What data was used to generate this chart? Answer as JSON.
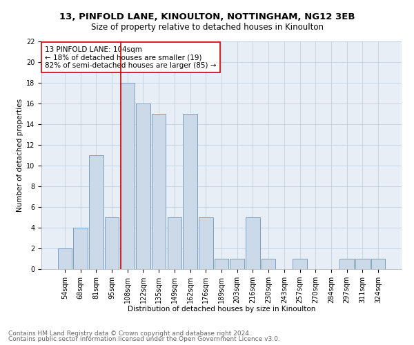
{
  "title": "13, PINFOLD LANE, KINOULTON, NOTTINGHAM, NG12 3EB",
  "subtitle": "Size of property relative to detached houses in Kinoulton",
  "xlabel": "Distribution of detached houses by size in Kinoulton",
  "ylabel": "Number of detached properties",
  "footnote1": "Contains HM Land Registry data © Crown copyright and database right 2024.",
  "footnote2": "Contains public sector information licensed under the Open Government Licence v3.0.",
  "categories": [
    "54sqm",
    "68sqm",
    "81sqm",
    "95sqm",
    "108sqm",
    "122sqm",
    "135sqm",
    "149sqm",
    "162sqm",
    "176sqm",
    "189sqm",
    "203sqm",
    "216sqm",
    "230sqm",
    "243sqm",
    "257sqm",
    "270sqm",
    "284sqm",
    "297sqm",
    "311sqm",
    "324sqm"
  ],
  "values": [
    2,
    4,
    11,
    5,
    18,
    16,
    15,
    5,
    15,
    5,
    1,
    1,
    5,
    1,
    0,
    1,
    0,
    0,
    1,
    1,
    1
  ],
  "bar_color": "#ccd9e8",
  "bar_edge_color": "#7a9fc0",
  "vline_color": "#cc0000",
  "vline_index": 4,
  "annotation_text": "13 PINFOLD LANE: 104sqm\n← 18% of detached houses are smaller (19)\n82% of semi-detached houses are larger (85) →",
  "annotation_box_color": "#ffffff",
  "annotation_box_edge": "#cc0000",
  "ylim": [
    0,
    22
  ],
  "yticks": [
    0,
    2,
    4,
    6,
    8,
    10,
    12,
    14,
    16,
    18,
    20,
    22
  ],
  "bg_axes": "#e8eef5",
  "background_color": "#ffffff",
  "grid_color": "#c0cfe0",
  "title_fontsize": 9.5,
  "subtitle_fontsize": 8.5,
  "axis_label_fontsize": 7.5,
  "tick_fontsize": 7,
  "annotation_fontsize": 7.5,
  "footnote_fontsize": 6.5
}
